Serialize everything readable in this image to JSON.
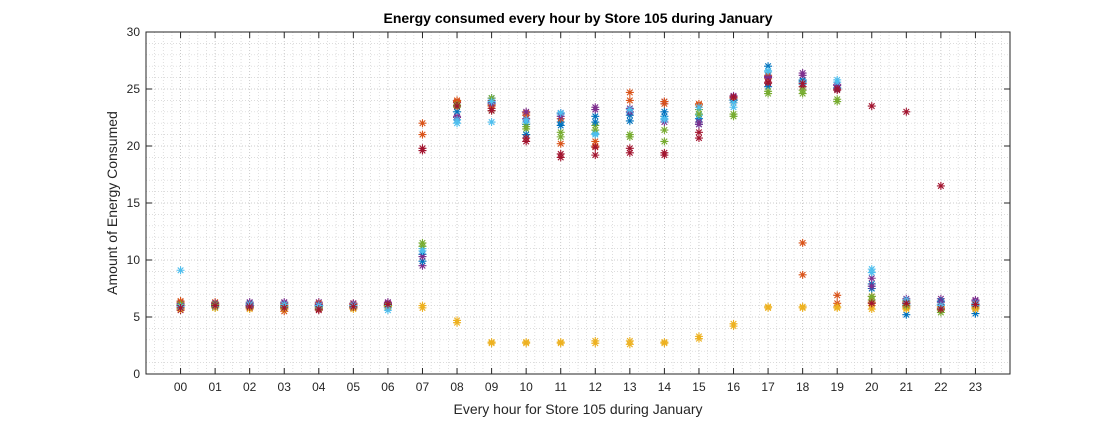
{
  "chart_data": {
    "type": "scatter",
    "title": "Energy consumed every hour by Store 105 during January",
    "xlabel": "Every hour for Store 105 during January",
    "ylabel": "Amount of Energy Consumed",
    "categories": [
      "00",
      "01",
      "02",
      "03",
      "04",
      "05",
      "06",
      "07",
      "08",
      "09",
      "10",
      "11",
      "12",
      "13",
      "14",
      "15",
      "16",
      "17",
      "18",
      "19",
      "20",
      "21",
      "22",
      "23"
    ],
    "ylim": [
      0,
      30
    ],
    "yticks": [
      0,
      5,
      10,
      15,
      20,
      25,
      30
    ],
    "yticks_labels": [
      "0",
      "5",
      "10",
      "15",
      "20",
      "25",
      "30"
    ],
    "grid": true,
    "minor_grid": true,
    "marker": "asterisk",
    "colors": [
      "#0072BD",
      "#D95319",
      "#EDB120",
      "#7E2F8E",
      "#77AC30",
      "#4DBEEE",
      "#A2142F"
    ],
    "series": [
      {
        "values": [
          6.0,
          6.1,
          6.2,
          5.9,
          6.0,
          6.0,
          6.1,
          10.5,
          22.3,
          23.8,
          21.9,
          22.1,
          22.6,
          22.2,
          22.6,
          22.4,
          24.1,
          27.0,
          25.7,
          25.1,
          7.9,
          5.2,
          6.1,
          5.3
        ]
      },
      {
        "values": [
          6.4,
          6.3,
          6.1,
          5.5,
          5.9,
          6.2,
          5.9,
          21.0,
          23.9,
          23.6,
          22.9,
          20.2,
          20.4,
          24.7,
          23.7,
          23.7,
          23.8,
          25.9,
          11.5,
          6.9,
          6.3,
          6.3,
          5.8,
          6.1
        ]
      },
      {
        "values": [
          5.8,
          5.9,
          5.8,
          5.8,
          5.7,
          5.9,
          6.0,
          6.0,
          4.7,
          2.8,
          2.7,
          2.7,
          2.7,
          2.6,
          2.7,
          3.1,
          4.4,
          5.9,
          5.8,
          5.8,
          5.7,
          5.8,
          5.7,
          5.7
        ]
      },
      {
        "values": [
          6.2,
          6.2,
          6.3,
          6.2,
          6.3,
          6.1,
          6.3,
          9.5,
          22.6,
          24.0,
          22.4,
          22.9,
          23.2,
          23.3,
          23.9,
          22.1,
          24.3,
          26.1,
          26.4,
          25.4,
          8.4,
          6.0,
          6.6,
          6.4
        ]
      },
      {
        "values": [
          5.9,
          5.8,
          5.9,
          6.1,
          6.0,
          5.8,
          5.9,
          11.5,
          23.4,
          23.1,
          21.5,
          21.2,
          21.8,
          21.0,
          21.4,
          23.2,
          22.6,
          24.6,
          24.6,
          23.9,
          6.5,
          6.4,
          5.4,
          5.9
        ]
      },
      {
        "values": [
          9.1,
          6.0,
          6.0,
          6.0,
          6.1,
          5.9,
          5.6,
          11.0,
          22.0,
          22.1,
          22.1,
          22.8,
          21.1,
          22.9,
          22.4,
          22.7,
          23.4,
          26.5,
          25.4,
          25.8,
          9.2,
          6.1,
          6.1,
          6.2
        ]
      },
      {
        "values": [
          5.6,
          6.1,
          5.8,
          5.7,
          5.6,
          5.8,
          6.2,
          19.6,
          23.8,
          23.3,
          20.4,
          19.0,
          19.2,
          19.4,
          19.2,
          20.7,
          24.2,
          25.5,
          25.2,
          24.9,
          23.5,
          23.0,
          16.5,
          6.1
        ]
      },
      {
        "values": [
          6.1,
          5.9,
          6.0,
          5.9,
          5.9,
          6.0,
          5.8,
          9.9,
          23.0,
          24.2,
          21.0,
          21.8,
          22.1,
          22.7,
          23.0,
          21.9,
          24.0,
          25.2,
          25.8,
          25.0,
          7.5,
          6.2,
          6.4,
          6.0
        ]
      },
      {
        "values": [
          6.3,
          6.0,
          6.1,
          6.0,
          6.2,
          6.1,
          6.0,
          22.0,
          24.0,
          23.5,
          22.7,
          22.4,
          20.0,
          24.0,
          23.9,
          23.6,
          24.2,
          26.2,
          8.7,
          6.2,
          6.8,
          5.9,
          6.0,
          5.8
        ]
      },
      {
        "values": [
          5.7,
          5.8,
          5.7,
          5.7,
          5.8,
          5.7,
          5.9,
          5.8,
          4.5,
          2.7,
          2.8,
          2.8,
          2.9,
          2.9,
          2.8,
          3.3,
          4.2,
          5.8,
          5.9,
          5.9,
          6.0,
          5.7,
          5.9,
          5.8
        ]
      },
      {
        "values": [
          6.0,
          6.2,
          6.0,
          6.3,
          6.1,
          6.2,
          6.2,
          10.3,
          22.5,
          23.7,
          23.0,
          22.6,
          23.4,
          23.0,
          22.1,
          21.9,
          24.4,
          26.0,
          26.2,
          25.3,
          7.7,
          6.6,
          6.3,
          6.5
        ]
      },
      {
        "values": [
          6.1,
          6.1,
          5.9,
          5.9,
          5.8,
          5.9,
          6.0,
          11.2,
          23.6,
          24.2,
          21.7,
          20.8,
          21.4,
          20.8,
          20.4,
          22.8,
          22.8,
          24.8,
          24.9,
          24.1,
          6.8,
          6.0,
          5.6,
          6.1
        ]
      },
      {
        "values": [
          5.9,
          6.0,
          6.1,
          6.1,
          6.0,
          6.0,
          5.8,
          10.8,
          22.3,
          23.9,
          22.3,
          22.9,
          21.0,
          23.2,
          22.3,
          23.4,
          23.8,
          26.6,
          25.6,
          25.6,
          8.9,
          6.5,
          6.0,
          6.2
        ]
      },
      {
        "values": [
          5.8,
          6.0,
          5.9,
          5.8,
          5.7,
          5.9,
          6.1,
          19.8,
          23.5,
          23.1,
          20.7,
          19.3,
          19.9,
          19.8,
          19.4,
          21.2,
          24.3,
          25.6,
          25.5,
          25.0,
          6.2,
          6.2,
          5.7,
          6.1
        ]
      }
    ]
  }
}
